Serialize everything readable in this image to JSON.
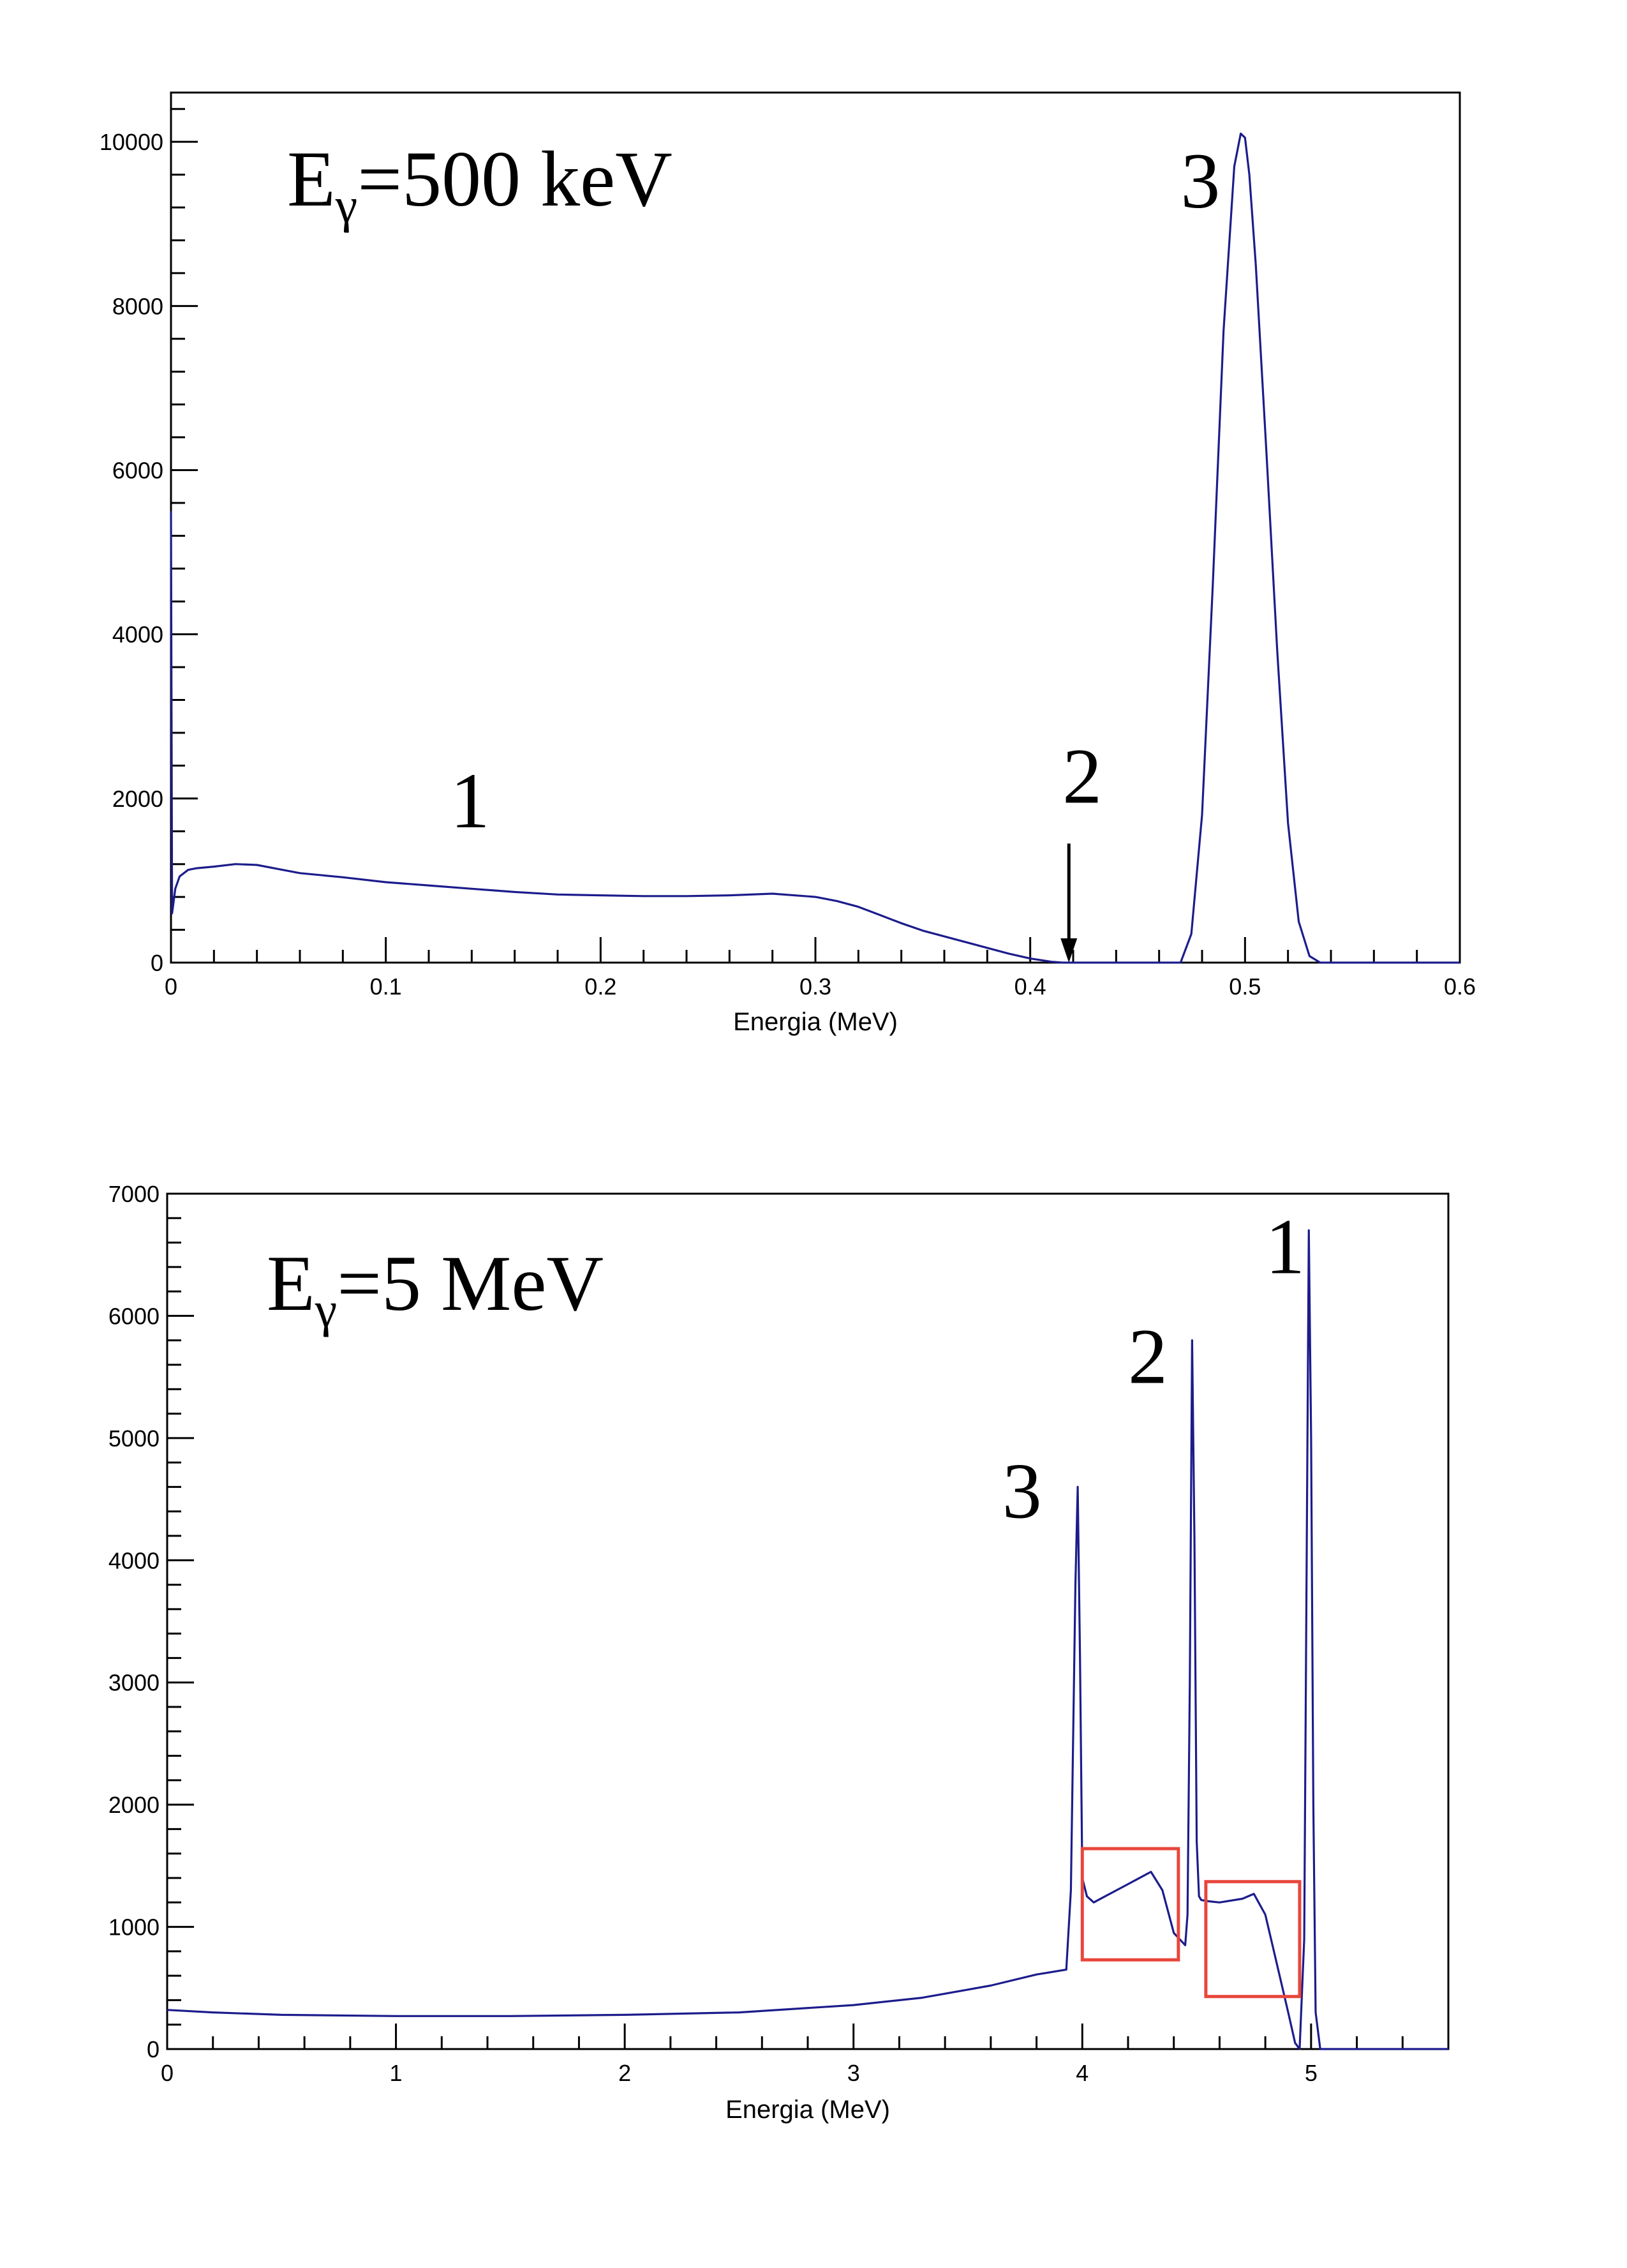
{
  "chart_data": [
    {
      "type": "line",
      "title": "Eγ=500 keV",
      "title_main": "E",
      "title_sub": "γ",
      "title_rest": "=500  keV",
      "xlabel": "Energia (MeV)",
      "ylabel": "",
      "xlim": [
        0,
        0.6
      ],
      "ylim": [
        0,
        10600
      ],
      "x_ticks": [
        0,
        0.1,
        0.2,
        0.3,
        0.4,
        0.5,
        0.6
      ],
      "x_tick_labels": [
        "0",
        "0.1",
        "0.2",
        "0.3",
        "0.4",
        "0.5",
        "0.6"
      ],
      "y_ticks": [
        0,
        2000,
        4000,
        6000,
        8000,
        10000
      ],
      "y_tick_labels": [
        "0",
        "2000",
        "4000",
        "6000",
        "8000",
        "10000"
      ],
      "grid": false,
      "color": "#1c1c8c",
      "series": [
        {
          "x": [
            0,
            0.0005,
            0.001,
            0.002,
            0.004,
            0.008,
            0.012,
            0.02,
            0.03,
            0.04,
            0.05,
            0.06,
            0.08,
            0.1,
            0.12,
            0.14,
            0.16,
            0.18,
            0.2,
            0.22,
            0.24,
            0.26,
            0.28,
            0.3,
            0.31,
            0.32,
            0.33,
            0.34,
            0.35,
            0.36,
            0.37,
            0.38,
            0.39,
            0.4,
            0.41,
            0.415,
            0.42,
            0.43,
            0.44,
            0.45,
            0.46,
            0.47,
            0.475,
            0.48,
            0.485,
            0.49,
            0.495,
            0.498,
            0.5,
            0.502,
            0.505,
            0.51,
            0.515,
            0.52,
            0.525,
            0.53,
            0.535,
            0.6
          ],
          "y": [
            5500,
            600,
            700,
            900,
            1050,
            1130,
            1150,
            1170,
            1200,
            1190,
            1140,
            1090,
            1040,
            980,
            940,
            900,
            860,
            830,
            820,
            810,
            810,
            820,
            840,
            800,
            750,
            680,
            580,
            480,
            390,
            320,
            250,
            180,
            110,
            50,
            10,
            0,
            0,
            0,
            0,
            0,
            0,
            0,
            350,
            1800,
            4600,
            7700,
            9700,
            10100,
            10050,
            9600,
            8500,
            6200,
            3800,
            1700,
            500,
            80,
            0,
            0
          ]
        }
      ],
      "annotations": [
        {
          "text": "1",
          "x": 0.13,
          "y": 1650
        },
        {
          "text": "2",
          "x": 0.415,
          "y": 1950
        },
        {
          "text": "3",
          "x": 0.47,
          "y": 9200
        }
      ],
      "arrow": {
        "x": 0.418,
        "y_from": 1450,
        "y_to": 0
      }
    },
    {
      "type": "line",
      "title": "Eγ=5 MeV",
      "title_main": "E",
      "title_sub": "γ",
      "title_rest": "=5  MeV",
      "xlabel": "Energia (MeV)",
      "ylabel": "",
      "xlim": [
        0,
        5.6
      ],
      "ylim": [
        0,
        7000
      ],
      "x_ticks": [
        0,
        1,
        2,
        3,
        4,
        5
      ],
      "x_tick_labels": [
        "0",
        "1",
        "2",
        "3",
        "4",
        "5"
      ],
      "y_ticks": [
        0,
        1000,
        2000,
        3000,
        4000,
        5000,
        6000,
        7000
      ],
      "y_tick_labels": [
        "0",
        "1000",
        "2000",
        "3000",
        "4000",
        "5000",
        "6000",
        "7000"
      ],
      "grid": false,
      "color": "#1c1c8c",
      "series": [
        {
          "x": [
            0,
            0.2,
            0.5,
            1.0,
            1.5,
            2.0,
            2.5,
            3.0,
            3.3,
            3.6,
            3.8,
            3.93,
            3.95,
            3.97,
            3.98,
            3.99,
            4.0,
            4.02,
            4.05,
            4.1,
            4.2,
            4.3,
            4.35,
            4.4,
            4.45,
            4.46,
            4.47,
            4.48,
            4.49,
            4.5,
            4.51,
            4.52,
            4.55,
            4.6,
            4.7,
            4.75,
            4.8,
            4.85,
            4.9,
            4.93,
            4.95,
            4.97,
            4.98,
            4.99,
            5.0,
            5.01,
            5.02,
            5.04,
            5.06,
            5.1,
            5.6
          ],
          "y": [
            320,
            300,
            280,
            270,
            270,
            280,
            300,
            360,
            420,
            520,
            610,
            650,
            1300,
            3800,
            4600,
            3200,
            1400,
            1250,
            1200,
            1250,
            1350,
            1450,
            1300,
            950,
            850,
            1100,
            3000,
            5800,
            4200,
            1700,
            1250,
            1220,
            1210,
            1200,
            1230,
            1270,
            1100,
            700,
            300,
            50,
            0,
            900,
            3800,
            6700,
            5000,
            2000,
            300,
            0,
            0,
            0,
            0
          ]
        }
      ],
      "annotations": [
        {
          "text": "1",
          "x": 4.8,
          "y": 6350
        },
        {
          "text": "2",
          "x": 4.2,
          "y": 5450
        },
        {
          "text": "3",
          "x": 3.65,
          "y": 4350
        }
      ],
      "highlight_boxes": [
        {
          "x": [
            4.0,
            4.42
          ],
          "y": [
            730,
            1640
          ]
        },
        {
          "x": [
            4.54,
            4.95
          ],
          "y": [
            430,
            1370
          ]
        }
      ]
    }
  ]
}
